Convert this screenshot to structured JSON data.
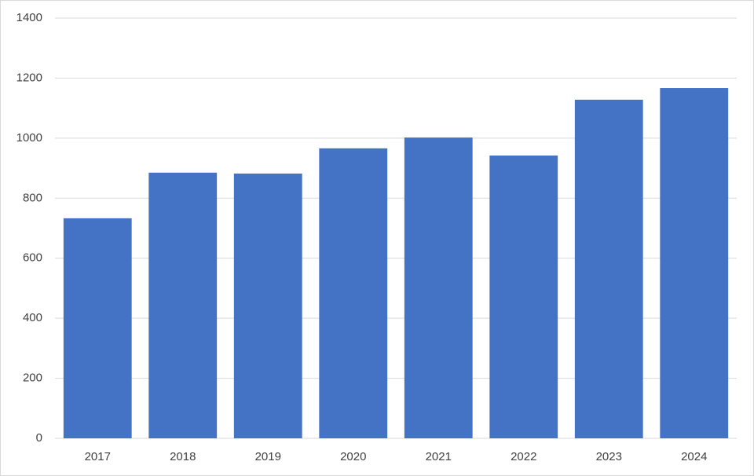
{
  "chart_data": {
    "type": "bar",
    "categories": [
      "2017",
      "2018",
      "2019",
      "2020",
      "2021",
      "2022",
      "2023",
      "2024"
    ],
    "values": [
      733,
      885,
      882,
      966,
      1002,
      942,
      1128,
      1167
    ],
    "color": "#4472c4",
    "ylim": [
      0,
      1400
    ],
    "yticks": [
      0,
      200,
      400,
      600,
      800,
      1000,
      1200,
      1400
    ],
    "grid": true
  }
}
